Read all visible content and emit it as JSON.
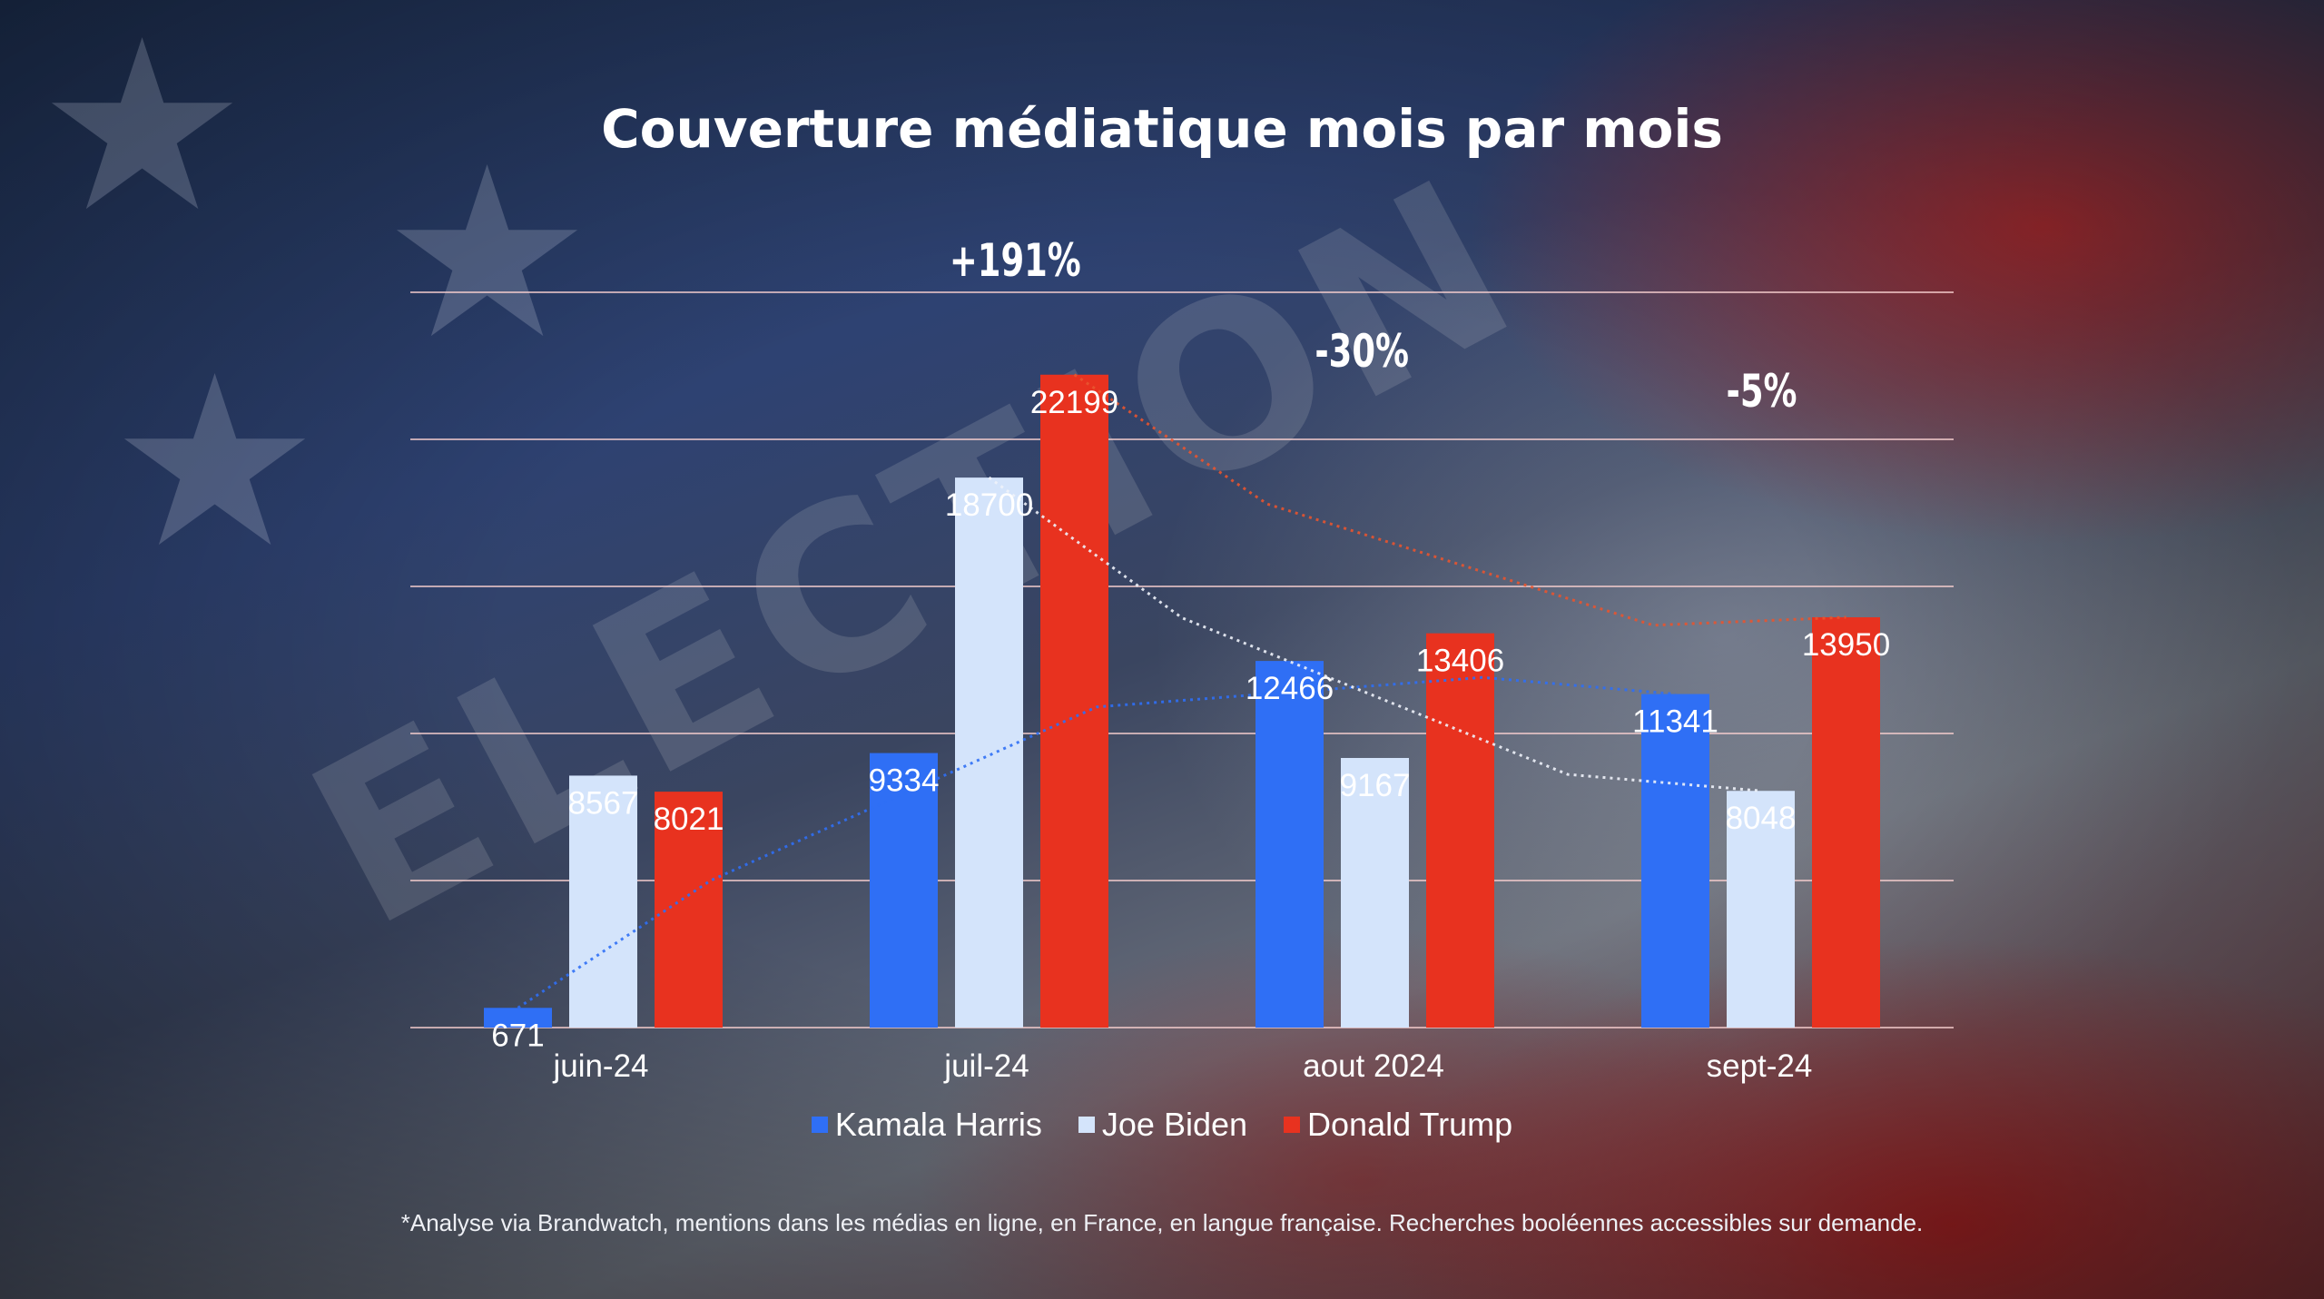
{
  "title": "Couverture médiatique mois par mois",
  "footnote": "*Analyse via Brandwatch, mentions dans les médias en ligne, en France, en langue française. Recherches booléennes accessibles sur demande.",
  "annotations": [
    "+191%",
    "-30%",
    "-5%"
  ],
  "colors": {
    "harris": "#2f6ff5",
    "biden": "#d4e4fb",
    "trump": "#e8321f"
  },
  "background_icons": [
    "star-icon",
    "star-icon",
    "star-icon"
  ],
  "chart_data": {
    "type": "bar",
    "title": "Couverture médiatique mois par mois",
    "categories": [
      "juin-24",
      "juil-24",
      "aout 2024",
      "sept-24"
    ],
    "series": [
      {
        "name": "Kamala Harris",
        "values": [
          671,
          9334,
          12466,
          11341
        ]
      },
      {
        "name": "Joe Biden",
        "values": [
          8567,
          18700,
          9167,
          8048
        ]
      },
      {
        "name": "Donald Trump",
        "values": [
          8021,
          22199,
          13406,
          13950
        ]
      }
    ],
    "ylim": [
      0,
      25000
    ],
    "grid": true,
    "legend": "bottom",
    "trendlines": "dotted"
  }
}
